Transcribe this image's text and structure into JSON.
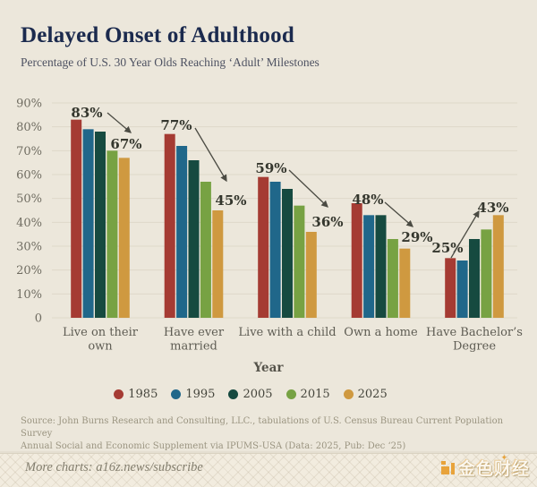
{
  "header": {
    "title": "Delayed Onset of Adulthood",
    "subtitle": "Percentage of U.S. 30 Year Olds Reaching ‘Adult’ Milestones"
  },
  "chart_data": {
    "type": "bar",
    "title": "Delayed Onset of Adulthood",
    "subtitle": "Percentage of U.S. 30 Year Olds Reaching ‘Adult’ Milestones",
    "xlabel": "Year",
    "ylabel": "",
    "ylim": [
      0,
      90
    ],
    "grid": true,
    "legend_position": "bottom",
    "y_ticks": [
      {
        "value": 90,
        "label": "90%"
      },
      {
        "value": 80,
        "label": "80%"
      },
      {
        "value": 70,
        "label": "70%"
      },
      {
        "value": 60,
        "label": "60%"
      },
      {
        "value": 50,
        "label": "50%"
      },
      {
        "value": 40,
        "label": "40%"
      },
      {
        "value": 30,
        "label": "30%"
      },
      {
        "value": 20,
        "label": "20%"
      },
      {
        "value": 10,
        "label": "10%"
      },
      {
        "value": 0,
        "label": "0"
      }
    ],
    "categories": [
      "Live on their own",
      "Have ever married",
      "Live with a child",
      "Own a home",
      "Have Bachelor’s Degree"
    ],
    "category_lines": [
      [
        "Live on their",
        "own"
      ],
      [
        "Have ever",
        "married"
      ],
      [
        "Live with a child"
      ],
      [
        "Own a home"
      ],
      [
        "Have Bachelor’s",
        "Degree"
      ]
    ],
    "series": [
      {
        "name": "1985",
        "color": "#a53b33",
        "values": [
          83,
          77,
          59,
          48,
          25
        ]
      },
      {
        "name": "1995",
        "color": "#20678a",
        "values": [
          79,
          72,
          57,
          43,
          24
        ]
      },
      {
        "name": "2005",
        "color": "#164a40",
        "values": [
          78,
          66,
          54,
          43,
          33
        ]
      },
      {
        "name": "2015",
        "color": "#77a243",
        "values": [
          70,
          57,
          47,
          33,
          37
        ]
      },
      {
        "name": "2025",
        "color": "#cf9940",
        "values": [
          67,
          45,
          36,
          29,
          43
        ]
      }
    ],
    "annotations": [
      {
        "category": "Live on their own",
        "start_label": "83%",
        "end_label": "67%",
        "trend": "down"
      },
      {
        "category": "Have ever married",
        "start_label": "77%",
        "end_label": "45%",
        "trend": "down"
      },
      {
        "category": "Live with a child",
        "start_label": "59%",
        "end_label": "36%",
        "trend": "down"
      },
      {
        "category": "Own a home",
        "start_label": "48%",
        "end_label": "29%",
        "trend": "down"
      },
      {
        "category": "Have Bachelor’s Degree",
        "start_label": "25%",
        "end_label": "43%",
        "trend": "up"
      }
    ]
  },
  "footer": {
    "source_lines": [
      "Source: John Burns Research and Consulting, LLC., tabulations of U.S. Census Bureau Current Population Survey",
      "Annual Social and Economic Supplement via IPUMS-USA (Data: 2025, Pub: Dec ‘25)"
    ],
    "more_charts": "More charts: a16z.news/subscribe",
    "watermark": "金色财经"
  },
  "colors": {
    "background": "#ece7db",
    "title": "#1b2a4e",
    "gridline": "#ded8c9",
    "axis_text": "#6f6c61",
    "annotation_text": "#34362d",
    "arrow": "#4b4b43",
    "watermark_gold": "#e8a33b"
  }
}
